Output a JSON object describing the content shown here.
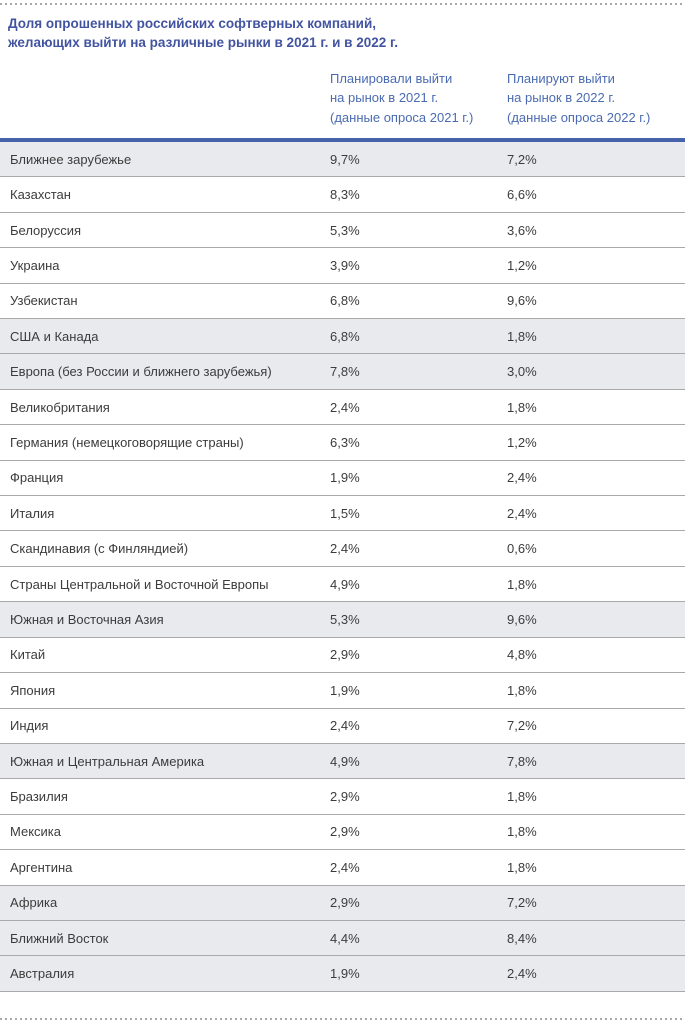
{
  "page": {
    "language": "ru",
    "accent_color": "#4254a0",
    "header_text_color": "#4a6bb1",
    "table_top_border_color": "#4763ab",
    "highlight_row_color": "#e9eaee",
    "row_separator_color": "#a9a9a9"
  },
  "chart_data": {
    "type": "table",
    "title": "Доля опрошенных российских софтверных компаний,\nжелающих выйти на различные рынки в 2021 г. и в 2022 г.",
    "columns": [
      "Планировали выйти\nна рынок в 2021 г.\n(данные опроса 2021 г.)",
      "Планируют выйти\nна рынок в 2022 г.\n(данные опроса 2022 г.)"
    ],
    "rows": [
      {
        "label": "Ближнее зарубежье",
        "plan_2021": "9,7%",
        "plan_2022": "7,2%",
        "highlighted": true
      },
      {
        "label": "Казахстан",
        "plan_2021": "8,3%",
        "plan_2022": "6,6%",
        "highlighted": false
      },
      {
        "label": "Белоруссия",
        "plan_2021": "5,3%",
        "plan_2022": "3,6%",
        "highlighted": false
      },
      {
        "label": "Украина",
        "plan_2021": "3,9%",
        "plan_2022": "1,2%",
        "highlighted": false
      },
      {
        "label": "Узбекистан",
        "plan_2021": "6,8%",
        "plan_2022": "9,6%",
        "highlighted": false
      },
      {
        "label": "США и Канада",
        "plan_2021": "6,8%",
        "plan_2022": "1,8%",
        "highlighted": true
      },
      {
        "label": "Европа (без России и ближнего зарубежья)",
        "plan_2021": "7,8%",
        "plan_2022": "3,0%",
        "highlighted": true
      },
      {
        "label": "Великобритания",
        "plan_2021": "2,4%",
        "plan_2022": "1,8%",
        "highlighted": false
      },
      {
        "label": "Германия (немецкоговорящие страны)",
        "plan_2021": "6,3%",
        "plan_2022": "1,2%",
        "highlighted": false
      },
      {
        "label": "Франция",
        "plan_2021": "1,9%",
        "plan_2022": "2,4%",
        "highlighted": false
      },
      {
        "label": "Италия",
        "plan_2021": "1,5%",
        "plan_2022": "2,4%",
        "highlighted": false
      },
      {
        "label": "Скандинавия (с Финляндией)",
        "plan_2021": "2,4%",
        "plan_2022": "0,6%",
        "highlighted": false
      },
      {
        "label": "Страны Центральной и Восточной Европы",
        "plan_2021": "4,9%",
        "plan_2022": "1,8%",
        "highlighted": false
      },
      {
        "label": "Южная и Восточная Азия",
        "plan_2021": "5,3%",
        "plan_2022": "9,6%",
        "highlighted": true
      },
      {
        "label": "Китай",
        "plan_2021": "2,9%",
        "plan_2022": "4,8%",
        "highlighted": false
      },
      {
        "label": "Япония",
        "plan_2021": "1,9%",
        "plan_2022": "1,8%",
        "highlighted": false
      },
      {
        "label": "Индия",
        "plan_2021": "2,4%",
        "plan_2022": "7,2%",
        "highlighted": false
      },
      {
        "label": "Южная и Центральная Америка",
        "plan_2021": "4,9%",
        "plan_2022": "7,8%",
        "highlighted": true
      },
      {
        "label": "Бразилия",
        "plan_2021": "2,9%",
        "plan_2022": "1,8%",
        "highlighted": false
      },
      {
        "label": "Мексика",
        "plan_2021": "2,9%",
        "plan_2022": "1,8%",
        "highlighted": false
      },
      {
        "label": "Аргентина",
        "plan_2021": "2,4%",
        "plan_2022": "1,8%",
        "highlighted": false
      },
      {
        "label": "Африка",
        "plan_2021": "2,9%",
        "plan_2022": "7,2%",
        "highlighted": true
      },
      {
        "label": "Ближний Восток",
        "plan_2021": "4,4%",
        "plan_2022": "8,4%",
        "highlighted": true
      },
      {
        "label": "Австралия",
        "plan_2021": "1,9%",
        "plan_2022": "2,4%",
        "highlighted": true
      }
    ]
  }
}
